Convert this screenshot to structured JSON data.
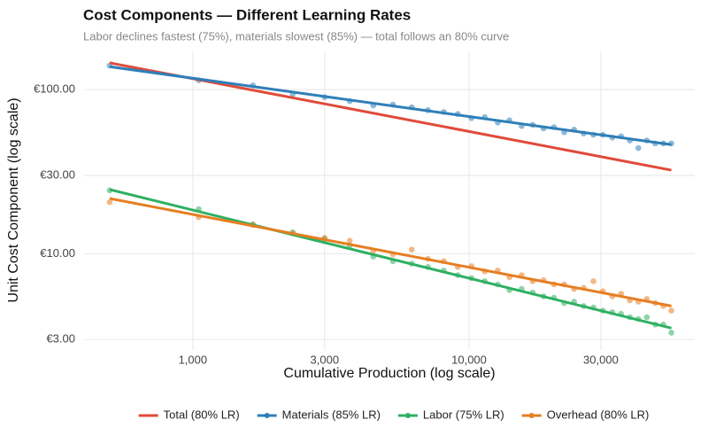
{
  "chart_data": {
    "type": "scatter",
    "title": "Cost Components — Different Learning Rates",
    "subtitle": "Labor declines fastest (75%), materials slowest (85%) — total follows an 80% curve",
    "x_label": "Cumulative Production (log scale)",
    "y_label": "Unit Cost Component (log scale)",
    "xscale": "log",
    "yscale": "log",
    "grid": true,
    "legend": "bottom",
    "xlim": [
      404,
      65600
    ],
    "ylim": [
      2.59,
      171
    ],
    "xticks": [
      {
        "value": 1000,
        "label": "1,000"
      },
      {
        "value": 3000,
        "label": "3,000"
      },
      {
        "value": 10000,
        "label": "10,000"
      },
      {
        "value": 30000,
        "label": "30,000"
      }
    ],
    "yticks": [
      {
        "value": 3,
        "label": "€3.00"
      },
      {
        "value": 10,
        "label": "€10.00"
      },
      {
        "value": 30,
        "label": "€30.00"
      },
      {
        "value": 100,
        "label": "€100.00"
      }
    ],
    "x": [
      500,
      1050,
      1650,
      2300,
      3000,
      3700,
      4500,
      5300,
      6200,
      7100,
      8100,
      9100,
      10200,
      11400,
      12700,
      14000,
      15500,
      17000,
      18600,
      20300,
      22100,
      24000,
      26000,
      28200,
      30500,
      33000,
      35500,
      38200,
      41000,
      44000,
      47200,
      50500,
      54000
    ],
    "fit_x": [
      500,
      54000
    ],
    "series": [
      {
        "name": "Total (80% LR)",
        "color": "#e04b3a",
        "fit": [
          145.7,
          32.3
        ]
      },
      {
        "name": "Materials (85% LR)",
        "color": "#2f7fb8",
        "fit": [
          138,
          46.2
        ],
        "values": [
          140,
          114,
          106,
          94,
          90,
          85,
          80,
          81,
          78,
          75,
          73,
          71,
          67,
          68,
          63,
          65,
          60,
          61,
          58,
          59,
          55,
          57,
          54,
          53,
          53,
          51,
          52,
          49,
          44,
          49,
          47,
          47,
          47
        ]
      },
      {
        "name": "Labor (75% LR)",
        "color": "#2fb062",
        "fit": [
          24.6,
          3.52
        ],
        "values": [
          24.3,
          18.7,
          15.1,
          13.5,
          12.3,
          11.2,
          9.6,
          9.0,
          8.7,
          8.3,
          7.9,
          7.4,
          7.1,
          6.8,
          6.5,
          6.0,
          6.1,
          5.8,
          5.5,
          5.4,
          5.0,
          5.1,
          4.8,
          4.7,
          4.5,
          4.4,
          4.3,
          4.1,
          4.0,
          4.1,
          3.7,
          3.7,
          3.3
        ]
      },
      {
        "name": "Overhead (80% LR)",
        "color": "#e67e22",
        "fit": [
          21.7,
          4.8
        ],
        "values": [
          20.6,
          16.7,
          15.0,
          13.3,
          12.5,
          12.0,
          10.4,
          9.9,
          10.6,
          9.3,
          9.0,
          8.3,
          8.4,
          7.8,
          7.9,
          7.2,
          7.4,
          6.8,
          6.9,
          6.5,
          6.5,
          6.1,
          6.2,
          6.8,
          5.9,
          5.5,
          5.7,
          5.2,
          5.1,
          5.3,
          5.0,
          4.8,
          4.5
        ]
      }
    ]
  }
}
